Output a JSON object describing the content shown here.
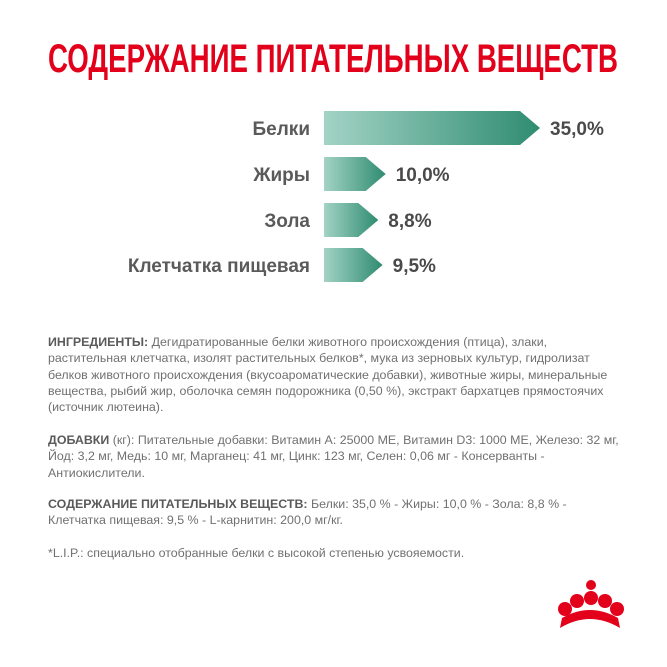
{
  "chart_data": {
    "type": "arrow-bar",
    "title": "СОДЕРЖАНИЕ ПИТАТЕЛЬНЫХ ВЕЩЕСТВ",
    "categories": [
      "Белки",
      "Жиры",
      "Зола",
      "Клетчатка пищевая"
    ],
    "values": [
      35.0,
      10.0,
      8.8,
      9.5
    ],
    "value_labels": [
      "35,0%",
      "10,0%",
      "8,8%",
      "9,5%"
    ],
    "color": [
      "#a3d3c5",
      "#2f8c70"
    ]
  },
  "ingredients": {
    "label": "ИНГРЕДИЕНТЫ:",
    "text": "Дегидратированные белки животного происхождения (птица), злаки, растительная клетчатка, изолят растительных белков*, мука из зерновых культур, гидролизат белков животного происхождения (вкусоароматические добавки), животные жиры, минеральные вещества, рыбий жир, оболочка семян подорожника (0,50 %), экстракт бархатцев прямостоячих (источник лютеина)."
  },
  "additives": {
    "label": "ДОБАВКИ",
    "unit": "(кг):",
    "text": "Питательные добавки: Витамин A: 25000 МЕ, Витамин D3: 1000 МЕ, Железо: 32 мг, Йод: 3,2 мг, Медь: 10 мг, Марганец: 41 мг, Цинк: 123 мг, Селен: 0,06 мг - Консерванты - Антиокислители."
  },
  "nutrients": {
    "label": "СОДЕРЖАНИЕ ПИТАТЕЛЬНЫХ ВЕЩЕСТВ:",
    "text": "Белки: 35,0 % - Жиры: 10,0 % - Зола: 8,8 % - Клетчатка пищевая: 9,5 % - L-карнитин: 200,0 мг/кг."
  },
  "footnote": "*L.I.P.: специально отобранные белки с высокой степенью усвояемости."
}
